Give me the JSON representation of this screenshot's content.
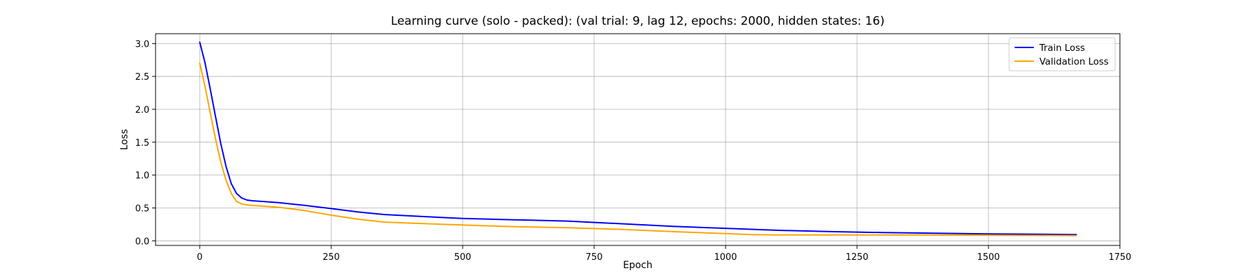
{
  "chart_data": {
    "type": "line",
    "title": "Learning curve (solo - packed): (val trial: 9, lag 12, epochs: 2000, hidden states: 16)",
    "xlabel": "Epoch",
    "ylabel": "Loss",
    "xlim": [
      -84,
      1750
    ],
    "ylim": [
      -0.07,
      3.15
    ],
    "xticks": [
      0,
      250,
      500,
      750,
      1000,
      1250,
      1500,
      1750
    ],
    "xtick_labels": [
      "0",
      "250",
      "500",
      "750",
      "1000",
      "1250",
      "1500",
      "1750"
    ],
    "yticks": [
      0.0,
      0.5,
      1.0,
      1.5,
      2.0,
      2.5,
      3.0
    ],
    "ytick_labels": [
      "0.0",
      "0.5",
      "1.0",
      "1.5",
      "2.0",
      "2.5",
      "3.0"
    ],
    "grid": true,
    "legend_position": "top-right",
    "series": [
      {
        "name": "Train Loss",
        "color": "#0000ff",
        "x": [
          0,
          10,
          20,
          30,
          40,
          50,
          60,
          70,
          80,
          90,
          100,
          150,
          200,
          250,
          300,
          350,
          400,
          500,
          600,
          700,
          800,
          900,
          1000,
          1100,
          1200,
          1300,
          1400,
          1500,
          1600,
          1667
        ],
        "y": [
          3.02,
          2.71,
          2.31,
          1.89,
          1.48,
          1.13,
          0.87,
          0.72,
          0.65,
          0.62,
          0.61,
          0.58,
          0.54,
          0.49,
          0.44,
          0.4,
          0.38,
          0.34,
          0.32,
          0.3,
          0.26,
          0.22,
          0.19,
          0.16,
          0.14,
          0.125,
          0.115,
          0.105,
          0.1,
          0.095
        ]
      },
      {
        "name": "Validation Loss",
        "color": "#ffa500",
        "x": [
          0,
          10,
          20,
          30,
          40,
          50,
          60,
          70,
          80,
          90,
          100,
          150,
          200,
          250,
          300,
          350,
          400,
          500,
          600,
          700,
          800,
          900,
          1000,
          1050,
          1100,
          1200,
          1300,
          1400,
          1500,
          1600,
          1667
        ],
        "y": [
          2.7,
          2.35,
          1.95,
          1.55,
          1.2,
          0.92,
          0.72,
          0.6,
          0.56,
          0.545,
          0.54,
          0.51,
          0.46,
          0.39,
          0.33,
          0.285,
          0.27,
          0.24,
          0.215,
          0.2,
          0.175,
          0.14,
          0.11,
          0.095,
          0.09,
          0.09,
          0.09,
          0.088,
          0.085,
          0.082,
          0.08
        ]
      }
    ]
  }
}
